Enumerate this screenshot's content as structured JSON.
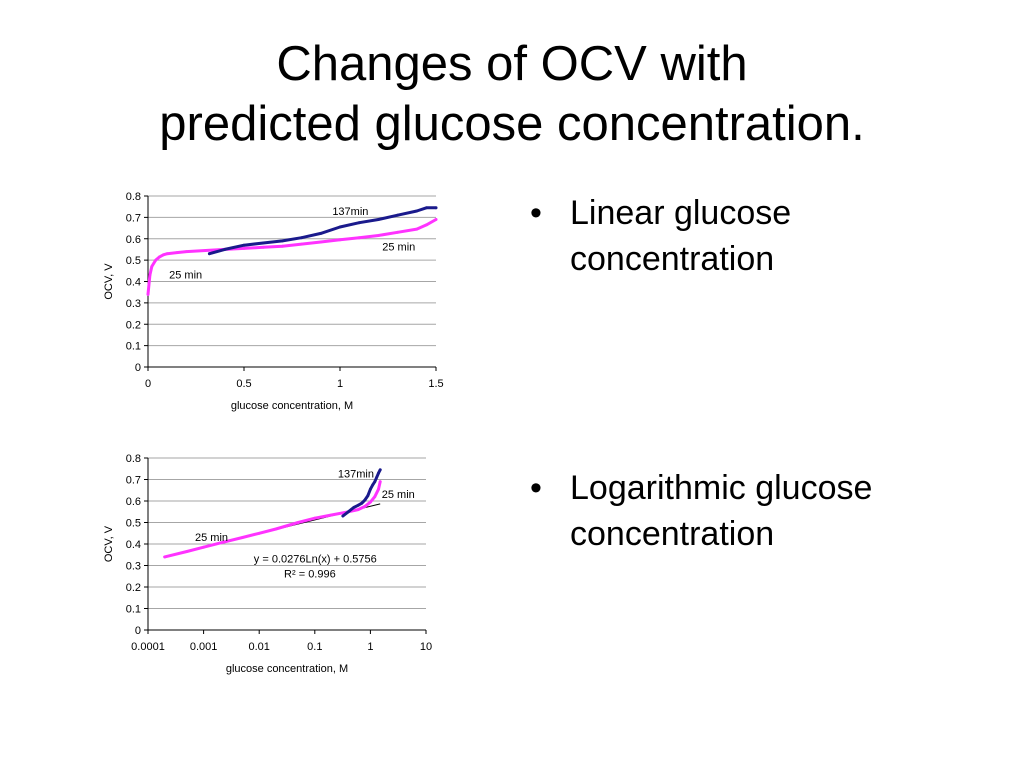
{
  "slide": {
    "title_lines": [
      "Changes of OCV with",
      "predicted glucose concentration."
    ]
  },
  "bullets": [
    {
      "marker": "•",
      "text": "Linear glucose concentration"
    },
    {
      "marker": "•",
      "text": "Logarithmic glucose concentration"
    }
  ],
  "colors": {
    "series_137min": "#1a1a8c",
    "series_25min": "#ff33ff",
    "grid": "#a6a6a6"
  },
  "chart_data": [
    {
      "type": "line",
      "title": "",
      "xlabel": "glucose concentration, M",
      "ylabel": "OCV, V",
      "xscale": "linear",
      "xlim": [
        0,
        1.5
      ],
      "ylim": [
        0,
        0.8
      ],
      "xticks": [
        "0",
        "0.5",
        "1",
        "1.5"
      ],
      "yticks": [
        "0",
        "0.1",
        "0.2",
        "0.3",
        "0.4",
        "0.5",
        "0.6",
        "0.7",
        "0.8"
      ],
      "grid": true,
      "series": [
        {
          "name": "137min",
          "x": [
            0.32,
            0.4,
            0.5,
            0.6,
            0.7,
            0.8,
            0.9,
            1.0,
            1.1,
            1.2,
            1.3,
            1.4,
            1.45,
            1.5
          ],
          "y": [
            0.53,
            0.55,
            0.57,
            0.58,
            0.59,
            0.605,
            0.625,
            0.655,
            0.675,
            0.69,
            0.71,
            0.73,
            0.745,
            0.745
          ]
        },
        {
          "name": "25 min",
          "x": [
            0,
            0.01,
            0.02,
            0.04,
            0.06,
            0.08,
            0.1,
            0.15,
            0.2,
            0.3,
            0.4,
            0.5,
            0.6,
            0.7,
            0.8,
            0.9,
            1.0,
            1.1,
            1.2,
            1.3,
            1.4,
            1.45,
            1.5
          ],
          "y": [
            0.34,
            0.43,
            0.47,
            0.5,
            0.515,
            0.525,
            0.53,
            0.535,
            0.54,
            0.545,
            0.55,
            0.555,
            0.56,
            0.565,
            0.575,
            0.585,
            0.595,
            0.605,
            0.615,
            0.63,
            0.645,
            0.665,
            0.69
          ]
        }
      ],
      "annotations": [
        {
          "text": "137min",
          "x": 0.96,
          "y": 0.71
        },
        {
          "text": "25 min",
          "x": 1.22,
          "y": 0.545
        },
        {
          "text": "25 min",
          "x": 0.11,
          "y": 0.415
        }
      ]
    },
    {
      "type": "line",
      "title": "",
      "xlabel": "glucose concentration, M",
      "ylabel": "OCV, V",
      "xscale": "log",
      "xlim": [
        0.0001,
        10
      ],
      "ylim": [
        0,
        0.8
      ],
      "xticks": [
        "0.0001",
        "0.001",
        "0.01",
        "0.1",
        "1",
        "10"
      ],
      "yticks": [
        "0",
        "0.1",
        "0.2",
        "0.3",
        "0.4",
        "0.5",
        "0.6",
        "0.7",
        "0.8"
      ],
      "grid": true,
      "series": [
        {
          "name": "137min",
          "x": [
            0.32,
            0.4,
            0.5,
            0.6,
            0.7,
            0.8,
            0.9,
            1.0,
            1.1,
            1.2,
            1.3,
            1.4,
            1.5
          ],
          "y": [
            0.53,
            0.55,
            0.57,
            0.58,
            0.59,
            0.605,
            0.625,
            0.655,
            0.675,
            0.69,
            0.71,
            0.73,
            0.745
          ]
        },
        {
          "name": "25 min",
          "x": [
            0.0002,
            0.0005,
            0.001,
            0.002,
            0.005,
            0.01,
            0.02,
            0.05,
            0.1,
            0.2,
            0.4,
            0.6,
            0.8,
            1.0,
            1.2,
            1.4,
            1.5
          ],
          "y": [
            0.34,
            0.365,
            0.385,
            0.405,
            0.43,
            0.45,
            0.47,
            0.5,
            0.52,
            0.535,
            0.55,
            0.56,
            0.575,
            0.595,
            0.62,
            0.655,
            0.69
          ]
        }
      ],
      "trendline": {
        "slope": 0.0276,
        "intercept": 0.5756,
        "x_from": 0.0002,
        "x_to": 1.5
      },
      "annotations": [
        {
          "text": "137min",
          "x": 0.26,
          "y": 0.71
        },
        {
          "text": "25 min",
          "x": 1.6,
          "y": 0.615
        },
        {
          "text": "25 min",
          "x": 0.0007,
          "y": 0.415
        },
        {
          "text": "y = 0.0276Ln(x) + 0.5756",
          "x": 0.008,
          "y": 0.315
        },
        {
          "text": "R² = 0.996",
          "x": 0.028,
          "y": 0.245
        }
      ]
    }
  ]
}
